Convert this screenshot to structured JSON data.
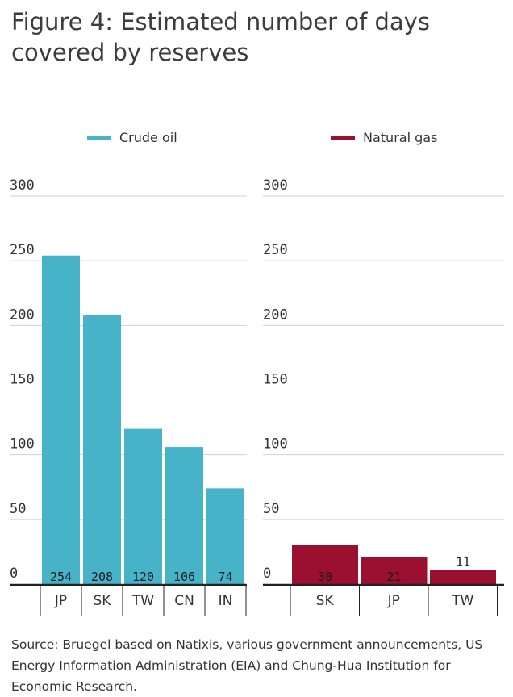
{
  "title": "Figure 4: Estimated number of days covered by reserves",
  "source": "Source: Bruegel based on Natixis, various government announcements, US Energy Information Administration (EIA) and Chung-Hua Institution for Economic Research.",
  "colors": {
    "crude": "#47b3c8",
    "gas": "#9b1030",
    "grid": "#d0d0d0",
    "axis": "#222222",
    "text": "#333333"
  },
  "chart_data": [
    {
      "type": "bar",
      "legend": "top-center",
      "series": [
        {
          "name": "Crude oil",
          "values": [
            254,
            208,
            120,
            106,
            74
          ]
        }
      ],
      "categories": [
        "JP",
        "SK",
        "TW",
        "CN",
        "IN"
      ],
      "yticks": [
        0,
        50,
        100,
        150,
        200,
        250,
        300
      ],
      "ylim": [
        0,
        300
      ],
      "grid": true
    },
    {
      "type": "bar",
      "legend": "top-center",
      "series": [
        {
          "name": "Natural gas",
          "values": [
            30,
            21,
            11
          ]
        }
      ],
      "categories": [
        "SK",
        "JP",
        "TW"
      ],
      "yticks": [
        0,
        50,
        100,
        150,
        200,
        250,
        300
      ],
      "ylim": [
        0,
        300
      ],
      "grid": true
    }
  ]
}
